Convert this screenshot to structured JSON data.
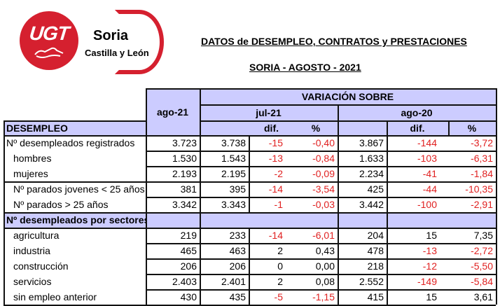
{
  "logo": {
    "brand": "UGT",
    "city": "Soria",
    "region": "Castilla y León",
    "brand_color": "#d5202f"
  },
  "title": "DATOS de DESEMPLEO, CONTRATOS y PRESTACIONES",
  "subtitle": "SORIA - AGOSTO - 2021",
  "table": {
    "header_color": "#ccccff",
    "negative_color": "#e02020",
    "col_current": "ago-21",
    "variation_title": "VARIACIÓN SOBRE",
    "period1": "jul-21",
    "period2": "ago-20",
    "dif_label": "dif.",
    "pct_label": "%",
    "section1": "DESEMPLEO",
    "section2": "Nº desempleados por sectores",
    "rows": [
      {
        "label": "Nº desempleados registrados",
        "cur": "3.723",
        "p1": "3.738",
        "p1_dif": "-15",
        "p1_pct": "-0,40",
        "p2": "3.867",
        "p2_dif": "-144",
        "p2_pct": "-3,72"
      },
      {
        "label": "hombres",
        "cur": "1.530",
        "p1": "1.543",
        "p1_dif": "-13",
        "p1_pct": "-0,84",
        "p2": "1.633",
        "p2_dif": "-103",
        "p2_pct": "-6,31"
      },
      {
        "label": "mujeres",
        "cur": "2.193",
        "p1": "2.195",
        "p1_dif": "-2",
        "p1_pct": "-0,09",
        "p2": "2.234",
        "p2_dif": "-41",
        "p2_pct": "-1,84"
      },
      {
        "label": "Nº parados jovenes < 25 años",
        "cur": "381",
        "p1": "395",
        "p1_dif": "-14",
        "p1_pct": "-3,54",
        "p2": "425",
        "p2_dif": "-44",
        "p2_pct": "-10,35"
      },
      {
        "label": "Nº parados > 25 años",
        "cur": "3.342",
        "p1": "3.343",
        "p1_dif": "-1",
        "p1_pct": "-0,03",
        "p2": "3.442",
        "p2_dif": "-100",
        "p2_pct": "-2,91"
      }
    ],
    "sector_rows": [
      {
        "label": "agricultura",
        "cur": "219",
        "p1": "233",
        "p1_dif": "-14",
        "p1_pct": "-6,01",
        "p2": "204",
        "p2_dif": "15",
        "p2_pct": "7,35"
      },
      {
        "label": "industria",
        "cur": "465",
        "p1": "463",
        "p1_dif": "2",
        "p1_pct": "0,43",
        "p2": "478",
        "p2_dif": "-13",
        "p2_pct": "-2,72"
      },
      {
        "label": "construcción",
        "cur": "206",
        "p1": "206",
        "p1_dif": "0",
        "p1_pct": "0,00",
        "p2": "218",
        "p2_dif": "-12",
        "p2_pct": "-5,50"
      },
      {
        "label": "servicios",
        "cur": "2.403",
        "p1": "2.401",
        "p1_dif": "2",
        "p1_pct": "0,08",
        "p2": "2.552",
        "p2_dif": "-149",
        "p2_pct": "-5,84"
      },
      {
        "label": "sin empleo anterior",
        "cur": "430",
        "p1": "435",
        "p1_dif": "-5",
        "p1_pct": "-1,15",
        "p2": "415",
        "p2_dif": "15",
        "p2_pct": "3,61"
      }
    ]
  }
}
